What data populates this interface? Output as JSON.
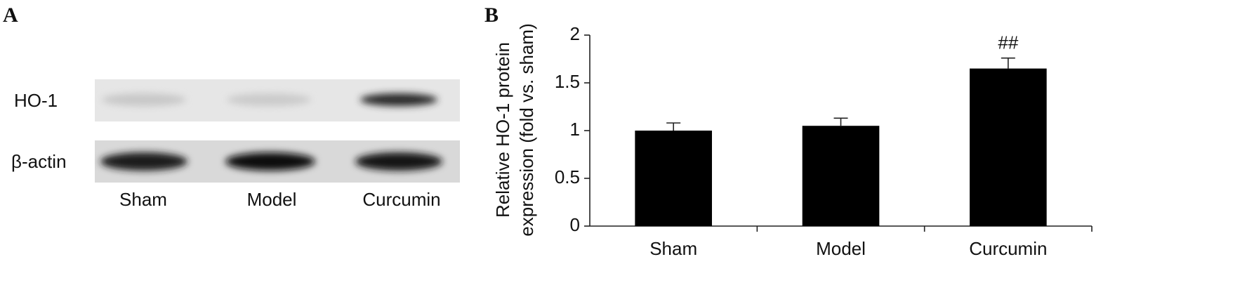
{
  "panel_a": {
    "label": "A",
    "rows": [
      "HO-1",
      "β-actin"
    ],
    "lanes": [
      "Sham",
      "Model",
      "Curcumin"
    ]
  },
  "chart_data": {
    "type": "bar",
    "panel_label": "B",
    "ylabel": [
      "Relative HO-1 protein",
      "expression (fold vs. sham)"
    ],
    "categories": [
      "Sham",
      "Model",
      "Curcumin"
    ],
    "values": [
      1.0,
      1.05,
      1.65
    ],
    "errors": [
      0.08,
      0.08,
      0.11
    ],
    "value_annotations": [
      null,
      null,
      "##"
    ],
    "color": "#000000",
    "ylim": [
      0,
      2
    ],
    "yticks": [
      0,
      0.5,
      1,
      1.5,
      2
    ],
    "grid": false
  }
}
